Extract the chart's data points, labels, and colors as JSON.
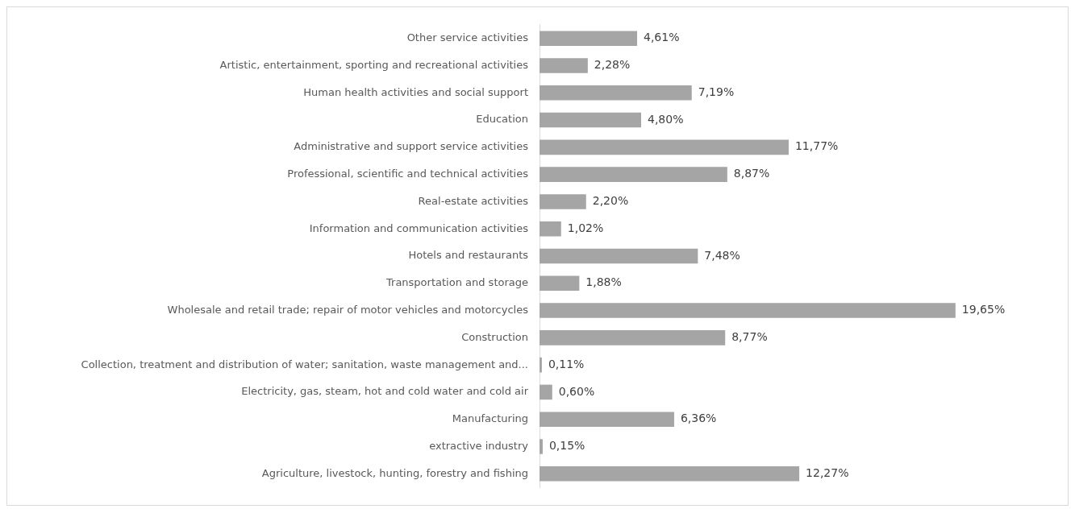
{
  "chart_data": {
    "type": "bar",
    "orientation": "horizontal",
    "categories": [
      "Other service activities",
      "Artistic, entertainment, sporting and recreational activities",
      "Human health activities and social support",
      "Education",
      "Administrative and support service activities",
      "Professional, scientific and technical activities",
      "Real-estate activities",
      "Information and communication activities",
      "Hotels and restaurants",
      "Transportation and storage",
      "Wholesale and retail trade; repair of motor vehicles and motorcycles",
      "Construction",
      "Collection, treatment and distribution of water; sanitation, waste management and...",
      "Electricity, gas, steam, hot and cold water and cold air",
      "Manufacturing",
      "extractive industry",
      "Agriculture, livestock, hunting, forestry and fishing"
    ],
    "values": [
      4.61,
      2.28,
      7.19,
      4.8,
      11.77,
      8.87,
      2.2,
      1.02,
      7.48,
      1.88,
      19.65,
      8.77,
      0.11,
      0.6,
      6.36,
      0.15,
      12.27
    ],
    "value_labels": [
      "4,61%",
      "2,28%",
      "7,19%",
      "4,80%",
      "11,77%",
      "8,87%",
      "2,20%",
      "1,02%",
      "7,48%",
      "1,88%",
      "19,65%",
      "8,77%",
      "0,11%",
      "0,60%",
      "6,36%",
      "0,15%",
      "12,27%"
    ],
    "color": "#a5a5a5",
    "legend": false
  }
}
